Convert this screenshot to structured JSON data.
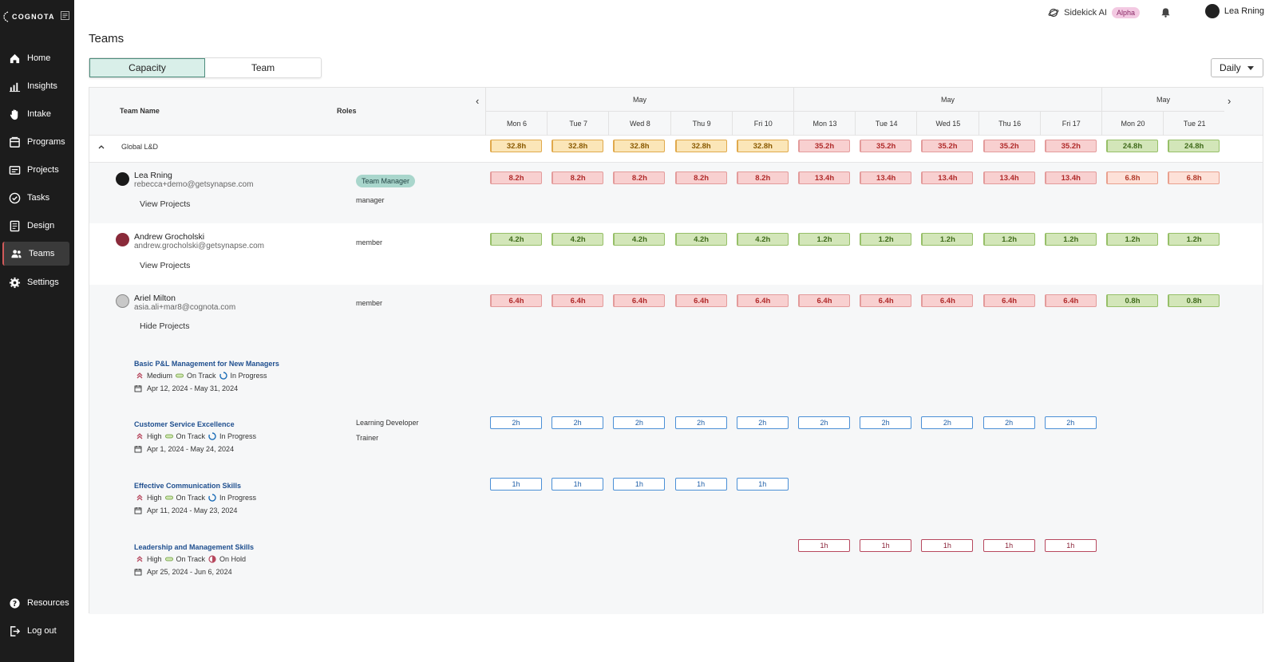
{
  "sidebar": {
    "logo": "COGNOTA",
    "items": [
      {
        "label": "Home",
        "icon": "home-icon"
      },
      {
        "label": "Insights",
        "icon": "chart-icon"
      },
      {
        "label": "Intake",
        "icon": "hand-icon"
      },
      {
        "label": "Programs",
        "icon": "programs-icon"
      },
      {
        "label": "Projects",
        "icon": "projects-icon"
      },
      {
        "label": "Tasks",
        "icon": "check-circle-icon"
      },
      {
        "label": "Design",
        "icon": "design-icon"
      },
      {
        "label": "Teams",
        "icon": "users-icon",
        "active": true
      },
      {
        "label": "Settings",
        "icon": "gear-icon"
      }
    ],
    "bottom": [
      {
        "label": "Resources",
        "icon": "help-icon"
      },
      {
        "label": "Log out",
        "icon": "logout-icon"
      }
    ]
  },
  "topbar": {
    "sidekick": "Sidekick AI",
    "alpha": "Alpha",
    "user": "Lea Rning"
  },
  "page": {
    "title": "Teams",
    "tabs": [
      "Capacity",
      "Team"
    ],
    "active_tab": "Capacity",
    "view_select": "Daily"
  },
  "grid": {
    "col_team": "Team Name",
    "col_roles": "Roles",
    "months": [
      "May",
      "May",
      "May"
    ],
    "days": [
      "Mon 6",
      "Tue 7",
      "Wed 8",
      "Thu 9",
      "Fri 10",
      "Mon 13",
      "Tue 14",
      "Wed 15",
      "Thu 16",
      "Fri 17",
      "Mon 20",
      "Tue 21"
    ],
    "group": {
      "name": "Global L&D",
      "values": [
        "32.8h",
        "32.8h",
        "32.8h",
        "32.8h",
        "32.8h",
        "35.2h",
        "35.2h",
        "35.2h",
        "35.2h",
        "35.2h",
        "24.8h",
        "24.8h"
      ],
      "colors": [
        "amber",
        "amber",
        "amber",
        "amber",
        "amber",
        "red",
        "red",
        "red",
        "red",
        "red",
        "green",
        "green"
      ]
    },
    "members": [
      {
        "name": "Lea Rning",
        "email": "rebecca+demo@getsynapse.com",
        "link": "View Projects",
        "badge": "Team Manager",
        "role": "manager",
        "values": [
          "8.2h",
          "8.2h",
          "8.2h",
          "8.2h",
          "8.2h",
          "13.4h",
          "13.4h",
          "13.4h",
          "13.4h",
          "13.4h",
          "6.8h",
          "6.8h"
        ],
        "colors": [
          "red",
          "red",
          "red",
          "red",
          "red",
          "red",
          "red",
          "red",
          "red",
          "red",
          "pink-light",
          "pink-light"
        ]
      },
      {
        "name": "Andrew Grocholski",
        "email": "andrew.grocholski@getsynapse.com",
        "link": "View Projects",
        "role": "member",
        "values": [
          "4.2h",
          "4.2h",
          "4.2h",
          "4.2h",
          "4.2h",
          "1.2h",
          "1.2h",
          "1.2h",
          "1.2h",
          "1.2h",
          "1.2h",
          "1.2h"
        ],
        "colors": [
          "green",
          "green",
          "green",
          "green",
          "green",
          "green",
          "green",
          "green",
          "green",
          "green",
          "green",
          "green"
        ]
      },
      {
        "name": "Ariel Milton",
        "email": "asia.ali+mar8@cognota.com",
        "link": "Hide Projects",
        "role": "member",
        "values": [
          "6.4h",
          "6.4h",
          "6.4h",
          "6.4h",
          "6.4h",
          "6.4h",
          "6.4h",
          "6.4h",
          "6.4h",
          "6.4h",
          "0.8h",
          "0.8h"
        ],
        "colors": [
          "red",
          "red",
          "red",
          "red",
          "red",
          "red",
          "red",
          "red",
          "red",
          "red",
          "green",
          "green"
        ]
      }
    ],
    "projects": [
      {
        "title": "Basic P&L Management for New Managers",
        "priority": "Medium",
        "health": "On Track",
        "status": "In Progress",
        "dates": "Apr 12, 2024 - May 31, 2024",
        "roles": [],
        "hours": []
      },
      {
        "title": "Customer Service Excellence",
        "priority": "High",
        "health": "On Track",
        "status": "In Progress",
        "dates": "Apr 1, 2024 - May 24, 2024",
        "roles": [
          "Learning Developer",
          "Trainer"
        ],
        "hours": [
          "2h",
          "2h",
          "2h",
          "2h",
          "2h",
          "2h",
          "2h",
          "2h",
          "2h",
          "2h"
        ]
      },
      {
        "title": "Effective Communication Skills",
        "priority": "High",
        "health": "On Track",
        "status": "In Progress",
        "dates": "Apr 11, 2024 - May 23, 2024",
        "roles": [],
        "hours": [
          "1h",
          "1h",
          "1h",
          "1h",
          "1h"
        ]
      },
      {
        "title": "Leadership and Management Skills",
        "priority": "High",
        "health": "On Track",
        "status": "On Hold",
        "dates": "Apr 25, 2024 - Jun 6, 2024",
        "roles": [],
        "hours": [
          "",
          "",
          "",
          "",
          "",
          "1h",
          "1h",
          "1h",
          "1h",
          "1h"
        ]
      }
    ]
  }
}
